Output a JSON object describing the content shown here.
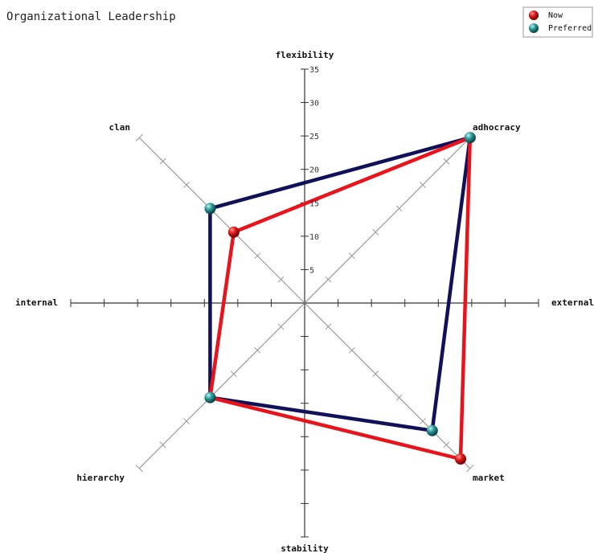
{
  "chart_data": {
    "type": "radar",
    "title": "Organizational Leadership",
    "axes": [
      "flexibility",
      "adhocracy",
      "external",
      "market",
      "stability",
      "hierarchy",
      "internal",
      "clan"
    ],
    "scale": {
      "min": 0,
      "max": 35,
      "step": 5,
      "tick_labels": [
        "5",
        "10",
        "15",
        "20",
        "25",
        "30",
        "35"
      ]
    },
    "quadrant_axes": [
      "clan",
      "adhocracy",
      "market",
      "hierarchy"
    ],
    "series": [
      {
        "name": "Now",
        "color": "#e8141c",
        "values": {
          "clan": 15,
          "adhocracy": 35,
          "market": 33,
          "hierarchy": 20
        }
      },
      {
        "name": "Preferred",
        "color": "#11115a",
        "values": {
          "clan": 20,
          "adhocracy": 35,
          "market": 27,
          "hierarchy": 20
        }
      }
    ],
    "marker_colors": {
      "Now": "#d81018",
      "Preferred": "#2a9a9a"
    },
    "legend": {
      "position": "top-right",
      "entries": [
        "Now",
        "Preferred"
      ]
    },
    "grid": false
  }
}
